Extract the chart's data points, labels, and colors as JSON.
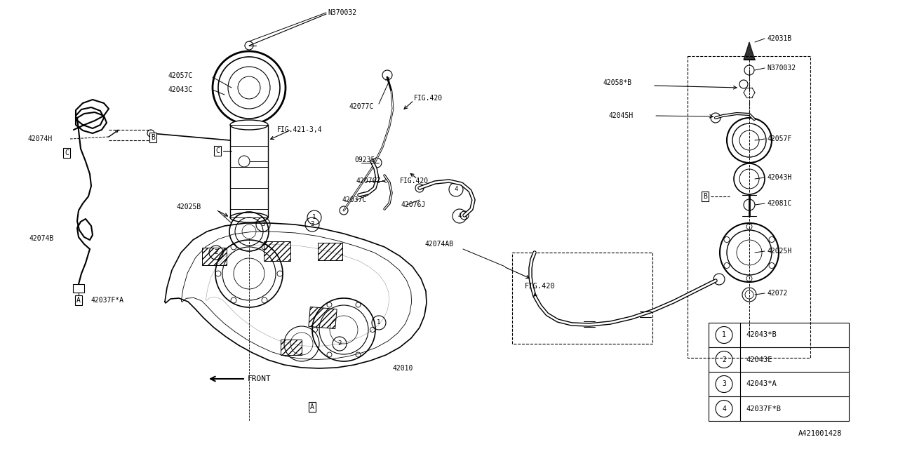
{
  "bg_color": "#ffffff",
  "line_color": "#000000",
  "diagram_id": "A421001428",
  "legend_items": [
    {
      "num": "1",
      "code": "42043*B"
    },
    {
      "num": "2",
      "code": "42043E"
    },
    {
      "num": "3",
      "code": "42043*A"
    },
    {
      "num": "4",
      "code": "42037F*B"
    }
  ],
  "fig_w": 1280,
  "fig_h": 640
}
